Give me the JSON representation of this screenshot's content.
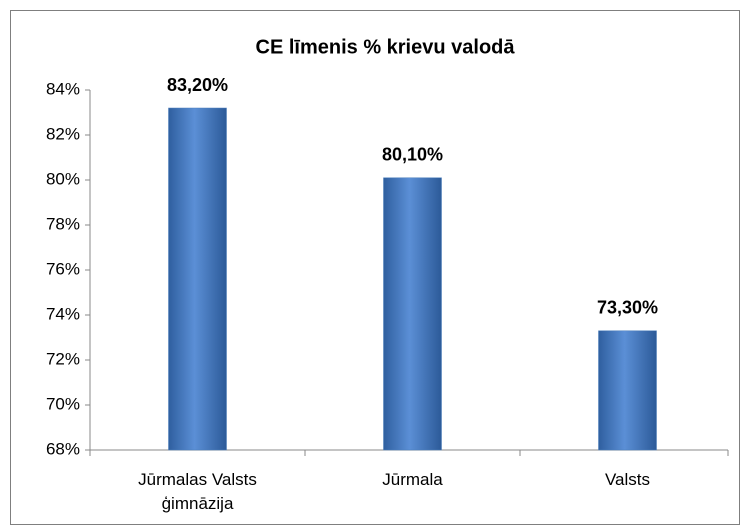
{
  "chart_data": {
    "type": "bar",
    "title": "CE līmenis % krievu valodā",
    "categories": [
      "Jūrmalas Valsts ģimnāzija",
      "Jūrmala",
      "Valsts"
    ],
    "values": [
      83.2,
      80.1,
      73.3
    ],
    "value_labels": [
      "83,20%",
      "80,10%",
      "73,30%"
    ],
    "color": "#4a7ebb",
    "ylim": [
      68,
      84
    ],
    "yticks": [
      {
        "value": 68,
        "label": "68%"
      },
      {
        "value": 70,
        "label": "70%"
      },
      {
        "value": 72,
        "label": "72%"
      },
      {
        "value": 74,
        "label": "74%"
      },
      {
        "value": 76,
        "label": "76%"
      },
      {
        "value": 78,
        "label": "78%"
      },
      {
        "value": 80,
        "label": "80%"
      },
      {
        "value": 82,
        "label": "82%"
      },
      {
        "value": 84,
        "label": "84%"
      }
    ],
    "grid": false
  }
}
